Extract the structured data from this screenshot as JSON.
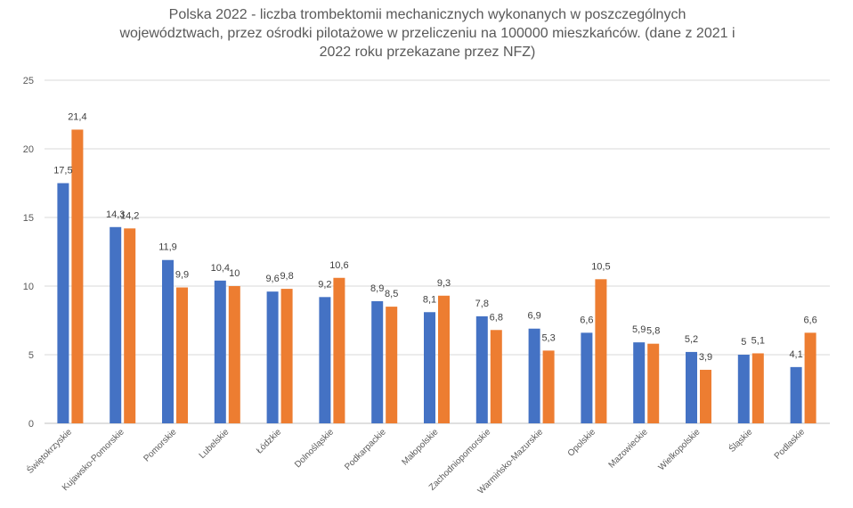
{
  "chart_data": {
    "type": "bar",
    "title": "Polska 2022 - liczba trombektomii mechanicznych wykonanych w poszczególnych\nwojewództwach, przez ośrodki pilotażowe w przeliczeniu na 100000 mieszkańców. (dane z 2021 i\n2022 roku przekazane przez NFZ)",
    "categories": [
      "Świętokrzyskie",
      "Kujawsko-Pomorskie",
      "Pomorskie",
      "Lubelskie",
      "Łódzkie",
      "Dolnośląskie",
      "Podkarpackie",
      "Małopolskie",
      "Zachodniopomorskie",
      "Warmińsko-Mazurskie",
      "Opolskie",
      "Mazowieckie",
      "Wielkopolskie",
      "Śląskie",
      "Podlaskie"
    ],
    "series": [
      {
        "color": "#4472C4",
        "values": [
          17.5,
          14.3,
          11.9,
          10.4,
          9.6,
          9.2,
          8.9,
          8.1,
          7.8,
          6.9,
          6.6,
          5.9,
          5.2,
          5,
          4.1
        ],
        "labels": [
          "17,5",
          "14,3",
          "11,9",
          "10,4",
          "9,6",
          "9,2",
          "8,9",
          "8,1",
          "7,8",
          "6,9",
          "6,6",
          "5,9",
          "5,2",
          "5",
          "4,1"
        ]
      },
      {
        "color": "#ED7D31",
        "values": [
          21.4,
          14.2,
          9.9,
          10,
          9.8,
          10.6,
          8.5,
          9.3,
          6.8,
          5.3,
          10.5,
          5.8,
          3.9,
          5.1,
          6.6
        ],
        "labels": [
          "21,4",
          "14,2",
          "9,9",
          "10",
          "9,8",
          "10,6",
          "8,5",
          "9,3",
          "6,8",
          "5,3",
          "10,5",
          "5,8",
          "3,9",
          "5,1",
          "6,6"
        ]
      }
    ],
    "ylim": [
      0,
      25
    ],
    "yticks": [
      "0",
      "5",
      "10",
      "15",
      "20",
      "25"
    ],
    "grid": true,
    "legend": "none",
    "xlabel": "",
    "ylabel": ""
  }
}
